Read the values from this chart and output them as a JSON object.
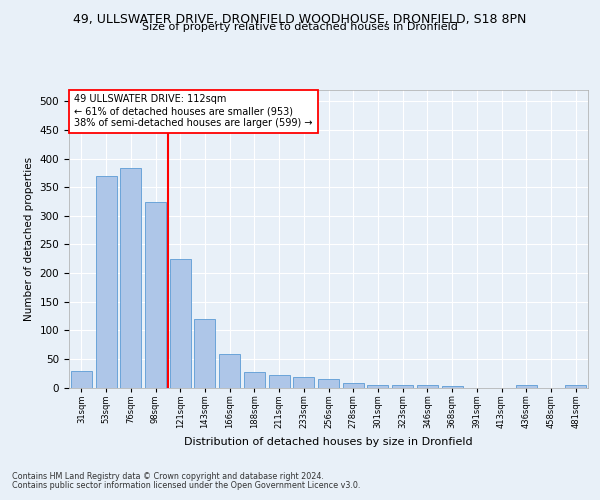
{
  "title_line1": "49, ULLSWATER DRIVE, DRONFIELD WOODHOUSE, DRONFIELD, S18 8PN",
  "title_line2": "Size of property relative to detached houses in Dronfield",
  "xlabel": "Distribution of detached houses by size in Dronfield",
  "ylabel": "Number of detached properties",
  "footer_line1": "Contains HM Land Registry data © Crown copyright and database right 2024.",
  "footer_line2": "Contains public sector information licensed under the Open Government Licence v3.0.",
  "annotation_line1": "49 ULLSWATER DRIVE: 112sqm",
  "annotation_line2": "← 61% of detached houses are smaller (953)",
  "annotation_line3": "38% of semi-detached houses are larger (599) →",
  "bar_labels": [
    "31sqm",
    "53sqm",
    "76sqm",
    "98sqm",
    "121sqm",
    "143sqm",
    "166sqm",
    "188sqm",
    "211sqm",
    "233sqm",
    "256sqm",
    "278sqm",
    "301sqm",
    "323sqm",
    "346sqm",
    "368sqm",
    "391sqm",
    "413sqm",
    "436sqm",
    "458sqm",
    "481sqm"
  ],
  "bar_values": [
    28,
    370,
    383,
    325,
    225,
    120,
    58,
    27,
    22,
    18,
    14,
    7,
    5,
    5,
    4,
    2,
    0,
    0,
    4,
    0,
    5
  ],
  "bar_color": "#aec6e8",
  "bar_edgecolor": "#5b9bd5",
  "vline_x": 3.5,
  "vline_color": "red",
  "ylim": [
    0,
    520
  ],
  "yticks": [
    0,
    50,
    100,
    150,
    200,
    250,
    300,
    350,
    400,
    450,
    500
  ],
  "bg_color": "#e8f0f8",
  "plot_bg_color": "#e8f0f8",
  "annotation_box_color": "white",
  "annotation_box_edge": "red"
}
